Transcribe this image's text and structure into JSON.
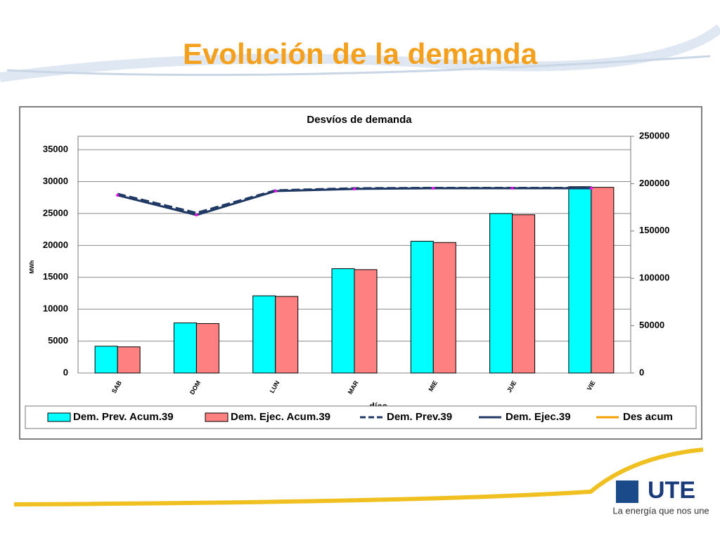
{
  "slide_title": "Evolución de la demanda",
  "logo": {
    "mark": "UTE",
    "tagline": "La energía que nos une"
  },
  "chart_data": {
    "type": "bar",
    "title": "Desvíos de demanda",
    "categories": [
      "SAB",
      "DOM",
      "LUN",
      "MAR",
      "MIE",
      "JUE",
      "VIE"
    ],
    "xlabel": "días",
    "ylabel": "MWh",
    "ylim": [
      0,
      37100
    ],
    "yticks": [
      0,
      5000,
      10000,
      15000,
      20000,
      25000,
      30000,
      35000
    ],
    "y2lim": [
      0,
      250000
    ],
    "y2ticks": [
      0,
      50000,
      100000,
      150000,
      200000,
      250000
    ],
    "grid": true,
    "series": [
      {
        "name": "Dem. Prev. Acum.39",
        "kind": "bar",
        "color": "#00ffff",
        "values": [
          4200,
          7850,
          12100,
          16350,
          20650,
          25000,
          29200
        ]
      },
      {
        "name": "Dem. Ejec. Acum.39",
        "kind": "bar",
        "color": "#ff8080",
        "values": [
          4100,
          7750,
          12000,
          16200,
          20450,
          24800,
          29100
        ]
      },
      {
        "name": "Dem. Prev.39",
        "kind": "line",
        "dash": true,
        "color": "#1f3864",
        "axis": "y2",
        "values": [
          189200,
          169100,
          192900,
          195100,
          195500,
          195500,
          195500
        ]
      },
      {
        "name": "Dem. Ejec.39",
        "kind": "line",
        "color": "#1f3864",
        "axis": "y2",
        "values": [
          187700,
          166900,
          192100,
          194400,
          195100,
          195100,
          195100
        ]
      },
      {
        "name": "Des acum",
        "kind": "line",
        "color": "#f4a000",
        "axis": "y2",
        "values": [
          null,
          null,
          null,
          null,
          null,
          null,
          null
        ]
      }
    ]
  }
}
